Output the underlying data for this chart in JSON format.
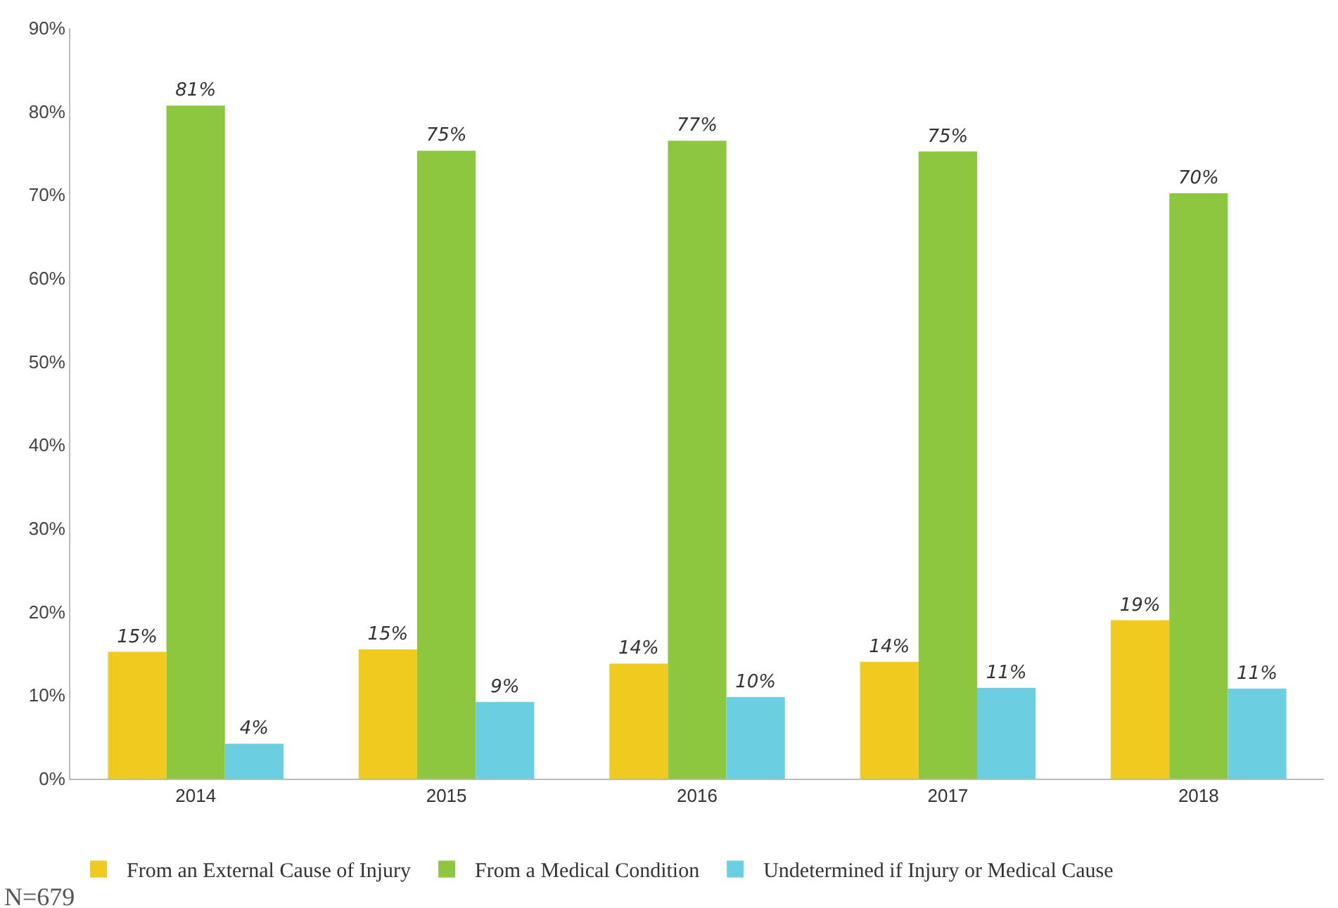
{
  "chart_data": {
    "type": "bar",
    "categories": [
      "2014",
      "2015",
      "2016",
      "2017",
      "2018"
    ],
    "series": [
      {
        "name": "From an External Cause of Injury",
        "color": "#f0ca1e",
        "values": [
          15.2,
          15.5,
          13.8,
          14,
          19
        ],
        "value_labels": [
          "15%",
          "15%",
          "14%",
          "14%",
          "19%"
        ]
      },
      {
        "name": "From a Medical Condition",
        "color": "#8dc63f",
        "values": [
          80.7,
          75.3,
          76.5,
          75.2,
          70.2
        ],
        "value_labels": [
          "81%",
          "75%",
          "77%",
          "75%",
          "70%"
        ]
      },
      {
        "name": "Undetermined if Injury or Medical Cause",
        "color": "#6ccfe1",
        "values": [
          4.2,
          9.2,
          9.8,
          10.9,
          10.8
        ],
        "value_labels": [
          "4%",
          "9%",
          "10%",
          "11%",
          "11%"
        ]
      }
    ],
    "ylim": [
      0,
      90
    ],
    "yticks": [
      {
        "value": 0,
        "label": "0%"
      },
      {
        "value": 10,
        "label": "10%"
      },
      {
        "value": 20,
        "label": "20%"
      },
      {
        "value": 30,
        "label": "30%"
      },
      {
        "value": 40,
        "label": "40%"
      },
      {
        "value": 50,
        "label": "50%"
      },
      {
        "value": 60,
        "label": "60%"
      },
      {
        "value": 70,
        "label": "70%"
      },
      {
        "value": 80,
        "label": "80%"
      },
      {
        "value": 90,
        "label": "90%"
      }
    ],
    "grid": false,
    "legend": "bottom",
    "annotations": [
      "N=679"
    ]
  }
}
